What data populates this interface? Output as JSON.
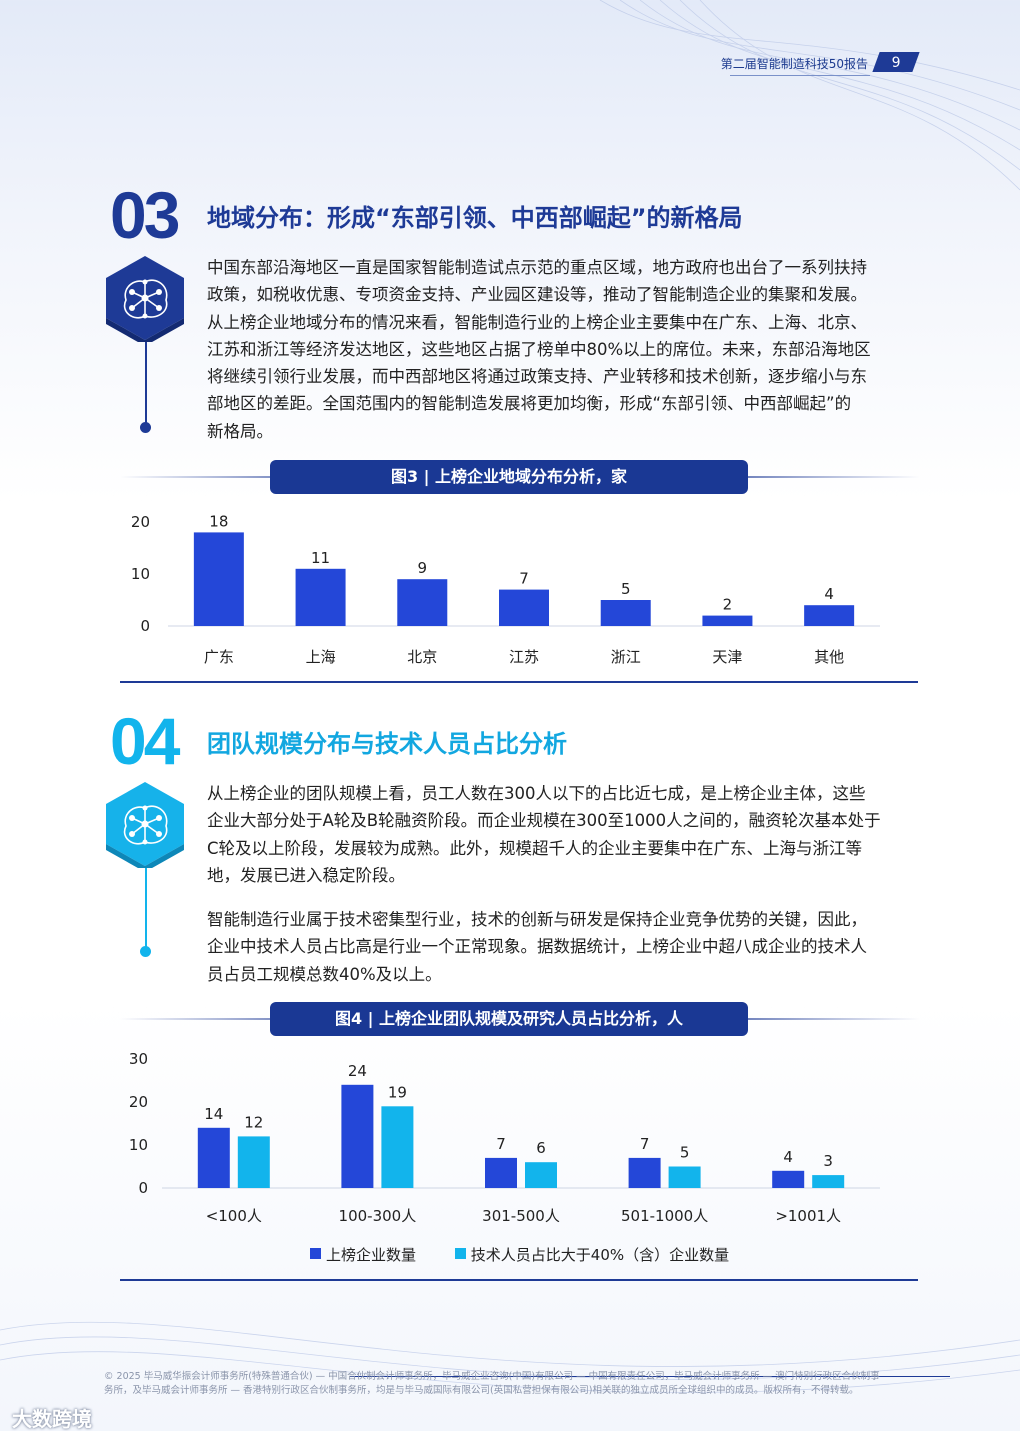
{
  "header": {
    "report_title": "第二届智能制造科技50报告",
    "page_number": "9"
  },
  "section3": {
    "number": "03",
    "title": "地域分布：形成“东部引领、中西部崛起”的新格局",
    "lines": [
      "中国东部沿海地区一直是国家智能制造试点示范的重点区域，地方政府也出台了一系列扶持",
      "政策，如税收优惠、专项资金支持、产业园区建设等，推动了智能制造企业的集聚和发展。",
      "从上榜企业地域分布的情况来看，智能制造行业的上榜企业主要集中在广东、上海、北京、",
      "江苏和浙江等经济发达地区，这些地区占据了榜单中80%以上的席位。未来，东部沿海地区",
      "将继续引领行业发展，而中西部地区将通过政策支持、产业转移和技术创新，逐步缩小与东",
      "部地区的差距。全国范围内的智能制造发展将更加均衡，形成“东部引领、中西部崛起”的",
      "新格局。"
    ],
    "figure_caption": "图3 | 上榜企业地域分布分析，家"
  },
  "section4": {
    "number": "04",
    "title": "团队规模分布与技术人员占比分析",
    "para1_lines": [
      "从上榜企业的团队规模上看，员工人数在300人以下的占比近七成，是上榜企业主体，这些",
      "企业大部分处于A轮及B轮融资阶段。而企业规模在300至1000人之间的，融资轮次基本处于",
      "C轮及以上阶段，发展较为成熟。此外，规模超千人的企业主要集中在广东、上海与浙江等",
      "地，发展已进入稳定阶段。"
    ],
    "para2_lines": [
      "智能制造行业属于技术密集型行业，技术的创新与研发是保持企业竞争优势的关键，因此，",
      "企业中技术人员占比高是行业一个正常现象。据数据统计，上榜企业中超八成企业的技术人",
      "员占员工规模总数40%及以上。"
    ],
    "figure_caption": "图4 | 上榜企业团队规模及研究人员占比分析，人"
  },
  "chart_data": [
    {
      "type": "bar",
      "categories": [
        "广东",
        "上海",
        "北京",
        "江苏",
        "浙江",
        "天津",
        "其他"
      ],
      "values": [
        18,
        11,
        9,
        7,
        5,
        2,
        4
      ],
      "yticks": [
        0,
        10,
        20
      ],
      "ylim": [
        0,
        20
      ],
      "color": "#2447d8",
      "data_labels": true
    },
    {
      "type": "bar",
      "categories": [
        "<100人",
        "100-300人",
        "301-500人",
        "501-1000人",
        ">1001人"
      ],
      "series": [
        {
          "name": "上榜企业数量",
          "values": [
            14,
            24,
            7,
            7,
            4
          ],
          "color": "#2447d8"
        },
        {
          "name": "技术人员占比大于40%（含）企业数量",
          "values": [
            12,
            19,
            6,
            5,
            3
          ],
          "color": "#12b4ec"
        }
      ],
      "yticks": [
        0,
        10,
        20,
        30
      ],
      "ylim": [
        0,
        30
      ],
      "legend_position": "bottom",
      "data_labels": true
    }
  ],
  "footer": {
    "line1": "© 2025 毕马威华振会计师事务所(特殊普通合伙) — 中国合伙制会计师事务所，毕马威企业咨询(中国)有限公司 — 中国有限责任公司，毕马威会计师事务所 — 澳门特别行政区合伙制事",
    "line2": "务所，及毕马威会计师事务所 — 香港特别行政区合伙制事务所，均是与毕马威国际有限公司(英国私营担保有限公司)相关联的独立成员所全球组织中的成员。版权所有，不得转载。"
  },
  "watermark": "大数跨境"
}
